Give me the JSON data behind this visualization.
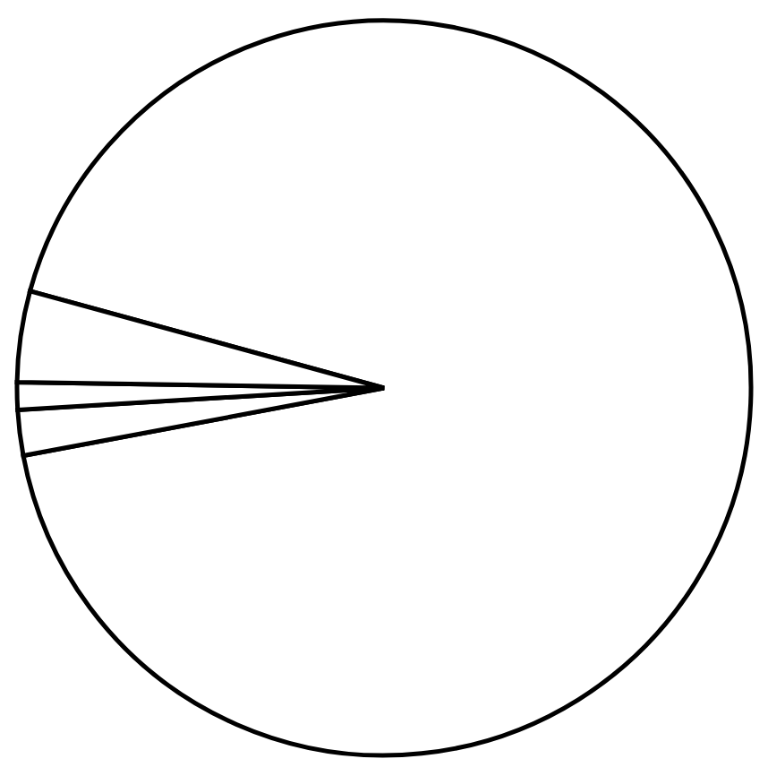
{
  "chart_data": {
    "type": "pie",
    "categories": [
      null,
      null,
      null,
      null
    ],
    "values": [
      92.8,
      2.0,
      1.2,
      4.0
    ],
    "colors": [
      "#ffffff",
      "#ffffff",
      "#ffffff",
      "#ffffff"
    ]
  }
}
